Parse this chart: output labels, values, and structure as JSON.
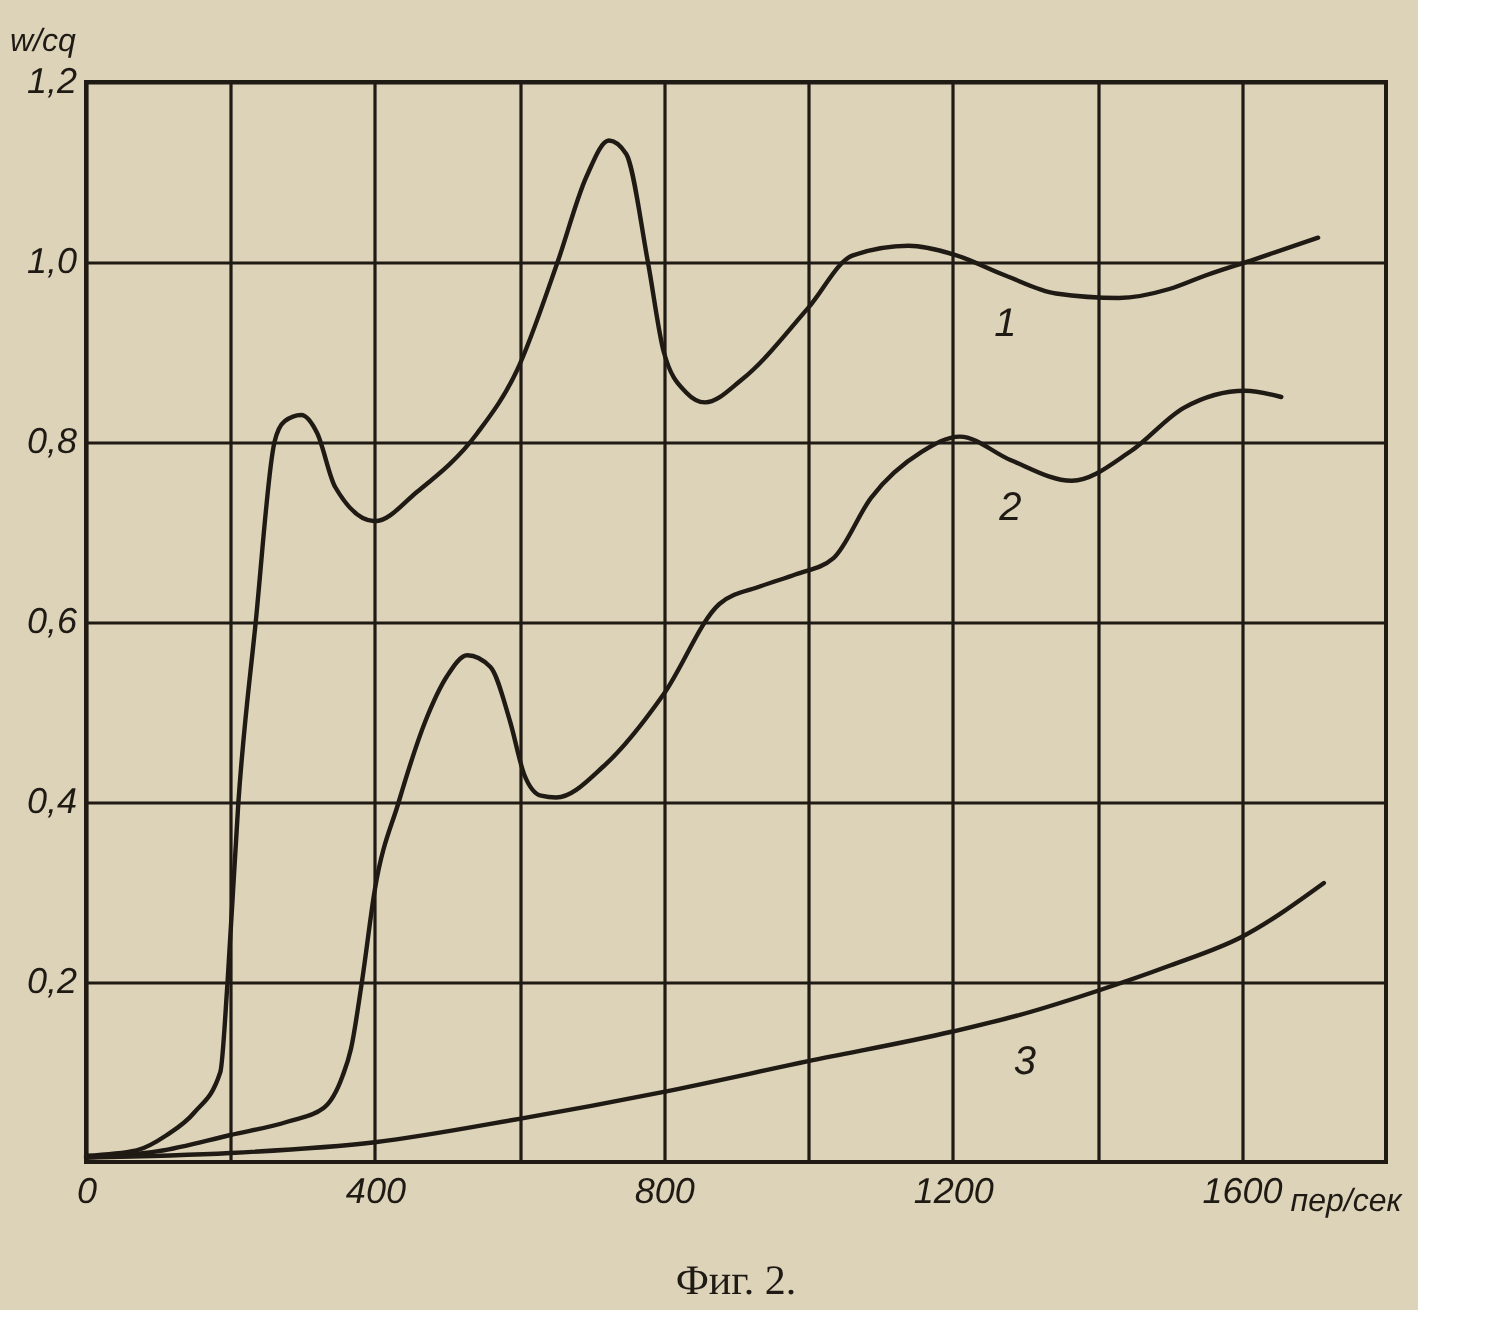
{
  "chart_data": {
    "type": "line",
    "xlabel": "пер/сек",
    "ylabel": "w/cq",
    "annotations": [
      "Фиг. 2."
    ],
    "xlim": [
      0,
      1800
    ],
    "ylim": [
      0,
      1.2
    ],
    "xticks": [
      0,
      {
        "value": 200,
        "label": null
      },
      400,
      {
        "value": 600,
        "label": null
      },
      800,
      {
        "value": 1000,
        "label": null
      },
      1200,
      {
        "value": 1400,
        "label": null
      },
      1600
    ],
    "yticks": [
      {
        "value": 0.2,
        "label": "0,2"
      },
      {
        "value": 0.4,
        "label": "0,4"
      },
      {
        "value": 0.6,
        "label": "0,6"
      },
      {
        "value": 0.8,
        "label": "0,8"
      },
      {
        "value": 1.0,
        "label": "1,0"
      },
      {
        "value": 1.2,
        "label": "1,2"
      }
    ],
    "grid": true,
    "legend": false,
    "marker": "none",
    "line_style": "solid",
    "series": [
      {
        "name": "1",
        "color": "#1f1a14",
        "x": [
          0,
          70,
          112,
          150,
          186,
          196,
          211,
          235,
          261,
          275,
          298,
          320,
          345,
          400,
          459,
          542,
          597,
          653,
          693,
          724,
          748,
          778,
          800,
          831,
          857,
          909,
          1000,
          1061,
          1139,
          1203,
          1273,
          1343,
          1430,
          1500,
          1550,
          1618,
          1706
        ],
        "values": [
          0.007,
          0.013,
          0.03,
          0.055,
          0.1,
          0.2,
          0.4,
          0.6,
          0.8,
          0.823,
          0.83,
          0.81,
          0.75,
          0.712,
          0.745,
          0.81,
          0.88,
          1.0,
          1.095,
          1.135,
          1.12,
          1.0,
          0.9,
          0.855,
          0.844,
          0.87,
          0.949,
          1.007,
          1.018,
          1.008,
          0.985,
          0.965,
          0.96,
          0.97,
          0.985,
          1.003,
          1.027
        ]
      },
      {
        "name": "2",
        "color": "#1f1a14",
        "x": [
          0,
          100,
          200,
          280,
          329,
          355,
          367,
          382,
          400,
          433,
          470,
          500,
          528,
          560,
          587,
          607,
          630,
          651,
          717,
          800,
          877,
          935,
          983,
          1035,
          1087,
          1157,
          1210,
          1280,
          1365,
          1447,
          1520,
          1605,
          1655
        ],
        "values": [
          0.005,
          0.012,
          0.03,
          0.045,
          0.06,
          0.095,
          0.126,
          0.2,
          0.303,
          0.4,
          0.49,
          0.54,
          0.563,
          0.55,
          0.49,
          0.43,
          0.407,
          0.405,
          0.44,
          0.52,
          0.62,
          0.64,
          0.653,
          0.671,
          0.738,
          0.789,
          0.806,
          0.78,
          0.757,
          0.79,
          0.838,
          0.857,
          0.85
        ]
      },
      {
        "name": "3",
        "color": "#1f1a14",
        "x": [
          0,
          200,
          400,
          600,
          800,
          1000,
          1200,
          1300,
          1400,
          1500,
          1600,
          1714
        ],
        "values": [
          0.005,
          0.01,
          0.022,
          0.048,
          0.078,
          0.112,
          0.145,
          0.165,
          0.19,
          0.218,
          0.25,
          0.31
        ]
      }
    ]
  }
}
